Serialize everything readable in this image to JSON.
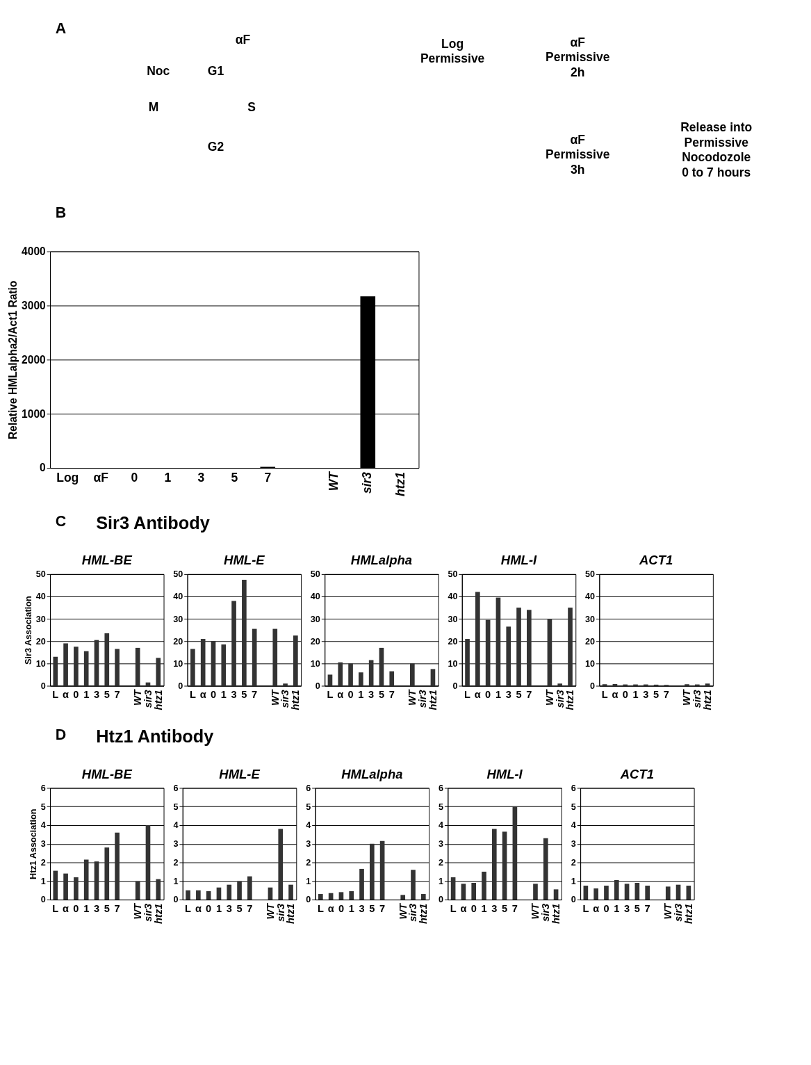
{
  "chart_data": [
    {
      "type": "other",
      "title": "A",
      "annotations": [
        "αF",
        "Noc",
        "G1",
        "M",
        "S",
        "G2",
        "Log\nPermissive",
        "αF\nPermissive\n2h",
        "αF\nPermissive\n3h",
        "Release into\nPermissive\nNocodozole\n0 to 7 hours"
      ]
    },
    {
      "type": "other",
      "title": "B"
    },
    {
      "type": "bar",
      "categories": [
        "Log",
        "αF",
        "0",
        "1",
        "3",
        "5",
        "7",
        null,
        "WT",
        "sir3",
        "htz1"
      ],
      "values": [
        0,
        0,
        0,
        0,
        0,
        0,
        20,
        null,
        0,
        3170,
        0
      ],
      "color": "#000000",
      "ylabel": "Relative HMLalpha2/Act1 Ratio",
      "ylim": [
        0,
        4000
      ],
      "yticks": [
        0,
        1000,
        2000,
        3000,
        4000
      ],
      "grid": "y"
    },
    {
      "type": "other",
      "title": "C",
      "subtitle": "Sir3 Antibody"
    },
    {
      "type": "bar",
      "title": "HML-BE",
      "ylabel": "Sir3 Association",
      "categories": [
        "L",
        "α",
        "0",
        "1",
        "3",
        "5",
        "7",
        null,
        "WT",
        "sir3",
        "htz1"
      ],
      "values": [
        13,
        19,
        17.5,
        15.5,
        20.5,
        23.5,
        16.5,
        null,
        17,
        1.5,
        12.5
      ],
      "color": "#333333",
      "ylim": [
        0,
        50
      ],
      "yticks": [
        0,
        10,
        20,
        30,
        40,
        50
      ],
      "grid": "y"
    },
    {
      "type": "bar",
      "title": "HML-E",
      "categories": [
        "L",
        "α",
        "0",
        "1",
        "3",
        "5",
        "7",
        null,
        "WT",
        "sir3",
        "htz1"
      ],
      "values": [
        16.5,
        21,
        20,
        18.5,
        38,
        47.5,
        25.5,
        null,
        25.5,
        1,
        22.5
      ],
      "color": "#333333",
      "ylim": [
        0,
        50
      ],
      "yticks": [
        0,
        10,
        20,
        30,
        40,
        50
      ],
      "grid": "y"
    },
    {
      "type": "bar",
      "title": "HMLalpha",
      "categories": [
        "L",
        "α",
        "0",
        "1",
        "3",
        "5",
        "7",
        null,
        "WT",
        "sir3",
        "htz1"
      ],
      "values": [
        5,
        10.5,
        10,
        6,
        11.5,
        17,
        6.5,
        null,
        10,
        null,
        7.5
      ],
      "color": "#333333",
      "ylim": [
        0,
        50
      ],
      "yticks": [
        0,
        10,
        20,
        30,
        40,
        50
      ],
      "grid": "y"
    },
    {
      "type": "bar",
      "title": "HML-I",
      "categories": [
        "L",
        "α",
        "0",
        "1",
        "3",
        "5",
        "7",
        null,
        "WT",
        "sir3",
        "htz1"
      ],
      "values": [
        21,
        42,
        29.5,
        39.5,
        26.5,
        35,
        34,
        null,
        30,
        1,
        35
      ],
      "color": "#333333",
      "ylim": [
        0,
        50
      ],
      "yticks": [
        0,
        10,
        20,
        30,
        40,
        50
      ],
      "grid": "y"
    },
    {
      "type": "bar",
      "title": "ACT1",
      "categories": [
        "L",
        "α",
        "0",
        "1",
        "3",
        "5",
        "7",
        null,
        "WT",
        "sir3",
        "htz1"
      ],
      "values": [
        0.7,
        0.8,
        0.6,
        0.6,
        0.6,
        0.5,
        0.4,
        null,
        0.7,
        0.6,
        1
      ],
      "color": "#333333",
      "ylim": [
        0,
        50
      ],
      "yticks": [
        0,
        10,
        20,
        30,
        40,
        50
      ],
      "grid": "y"
    },
    {
      "type": "other",
      "title": "D",
      "subtitle": "Htz1 Antibody"
    },
    {
      "type": "bar",
      "title": "HML-BE",
      "ylabel": "Htz1 Association",
      "categories": [
        "L",
        "α",
        "0",
        "1",
        "3",
        "5",
        "7",
        null,
        "WT",
        "sir3",
        "htz1"
      ],
      "values": [
        1.55,
        1.4,
        1.2,
        2.15,
        2.05,
        2.8,
        3.6,
        null,
        1.0,
        4.0,
        1.1
      ],
      "color": "#333333",
      "ylim": [
        0,
        6
      ],
      "yticks": [
        0,
        1,
        2,
        3,
        4,
        5,
        6
      ],
      "grid": "y"
    },
    {
      "type": "bar",
      "title": "HML-E",
      "categories": [
        "L",
        "α",
        "0",
        "1",
        "3",
        "5",
        "7",
        null,
        "WT",
        "sir3",
        "htz1"
      ],
      "values": [
        0.5,
        0.5,
        0.45,
        0.65,
        0.8,
        1.0,
        1.25,
        null,
        0.65,
        3.8,
        0.8
      ],
      "color": "#333333",
      "ylim": [
        0,
        6
      ],
      "yticks": [
        0,
        1,
        2,
        3,
        4,
        5,
        6
      ],
      "grid": "y"
    },
    {
      "type": "bar",
      "title": "HMLalpha",
      "categories": [
        "L",
        "α",
        "0",
        "1",
        "3",
        "5",
        "7",
        null,
        "WT",
        "sir3",
        "htz1"
      ],
      "values": [
        0.3,
        0.35,
        0.4,
        0.45,
        1.65,
        3.0,
        3.15,
        null,
        0.25,
        1.6,
        0.3
      ],
      "color": "#333333",
      "ylim": [
        0,
        6
      ],
      "yticks": [
        0,
        1,
        2,
        3,
        4,
        5,
        6
      ],
      "grid": "y"
    },
    {
      "type": "bar",
      "title": "HML-I",
      "categories": [
        "L",
        "α",
        "0",
        "1",
        "3",
        "5",
        "7",
        null,
        "WT",
        "sir3",
        "htz1"
      ],
      "values": [
        1.2,
        0.85,
        0.9,
        1.5,
        3.8,
        3.65,
        5.0,
        null,
        0.85,
        3.3,
        0.55
      ],
      "color": "#333333",
      "ylim": [
        0,
        6
      ],
      "yticks": [
        0,
        1,
        2,
        3,
        4,
        5,
        6
      ],
      "grid": "y"
    },
    {
      "type": "bar",
      "title": "ACT1",
      "categories": [
        "L",
        "α",
        "0",
        "1",
        "3",
        "5",
        "7",
        null,
        "WT",
        "sir3",
        "htz1"
      ],
      "values": [
        0.75,
        0.6,
        0.75,
        1.05,
        0.85,
        0.9,
        0.75,
        null,
        0.7,
        0.8,
        0.75
      ],
      "color": "#333333",
      "ylim": [
        0,
        6
      ],
      "yticks": [
        0,
        1,
        2,
        3,
        4,
        5,
        6
      ],
      "grid": "y"
    }
  ]
}
